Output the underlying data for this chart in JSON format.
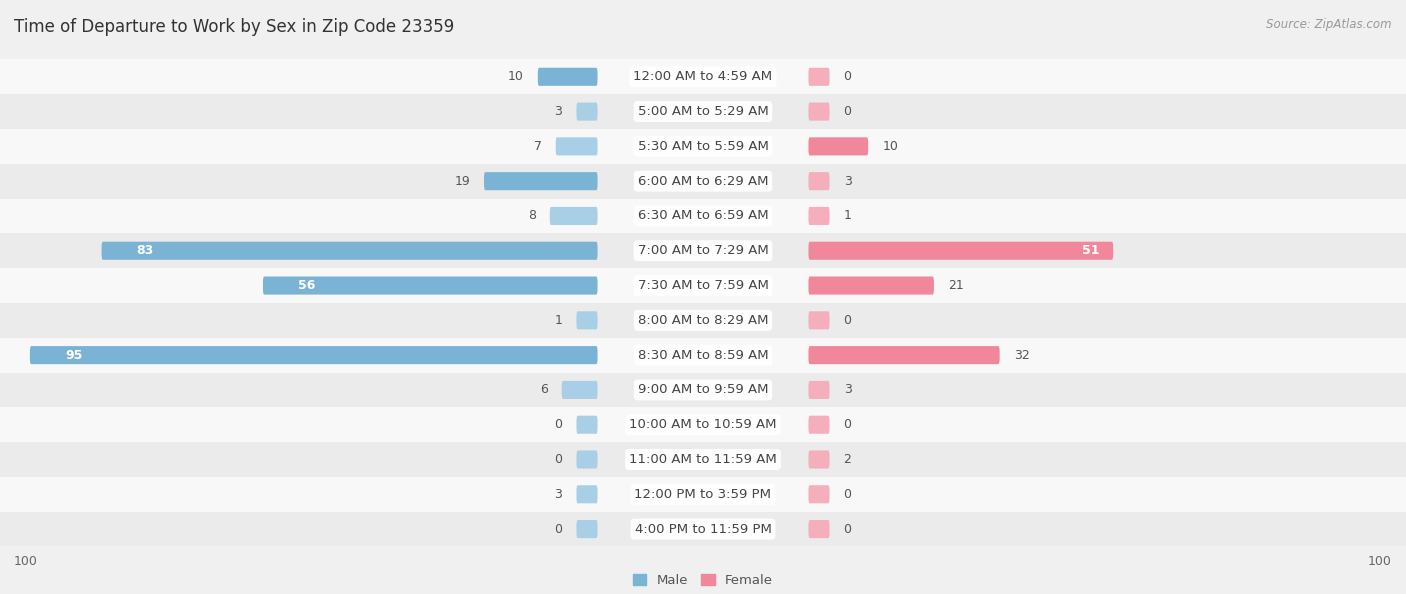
{
  "title": "Time of Departure to Work by Sex in Zip Code 23359",
  "source": "Source: ZipAtlas.com",
  "categories": [
    "12:00 AM to 4:59 AM",
    "5:00 AM to 5:29 AM",
    "5:30 AM to 5:59 AM",
    "6:00 AM to 6:29 AM",
    "6:30 AM to 6:59 AM",
    "7:00 AM to 7:29 AM",
    "7:30 AM to 7:59 AM",
    "8:00 AM to 8:29 AM",
    "8:30 AM to 8:59 AM",
    "9:00 AM to 9:59 AM",
    "10:00 AM to 10:59 AM",
    "11:00 AM to 11:59 AM",
    "12:00 PM to 3:59 PM",
    "4:00 PM to 11:59 PM"
  ],
  "male_values": [
    10,
    3,
    7,
    19,
    8,
    83,
    56,
    1,
    95,
    6,
    0,
    0,
    3,
    0
  ],
  "female_values": [
    0,
    0,
    10,
    3,
    1,
    51,
    21,
    0,
    32,
    3,
    0,
    2,
    0,
    0
  ],
  "male_color": "#7ab3d4",
  "female_color": "#f0879a",
  "male_color_light": "#a8cfe5",
  "female_color_light": "#f5aebb",
  "male_label": "Male",
  "female_label": "Female",
  "axis_max": 100,
  "min_stub": 3,
  "bg_color": "#f0f0f0",
  "row_bg_even": "#f8f8f8",
  "row_bg_odd": "#ebebeb",
  "title_fontsize": 12,
  "label_fontsize": 9.5,
  "value_fontsize": 9,
  "source_fontsize": 8.5
}
